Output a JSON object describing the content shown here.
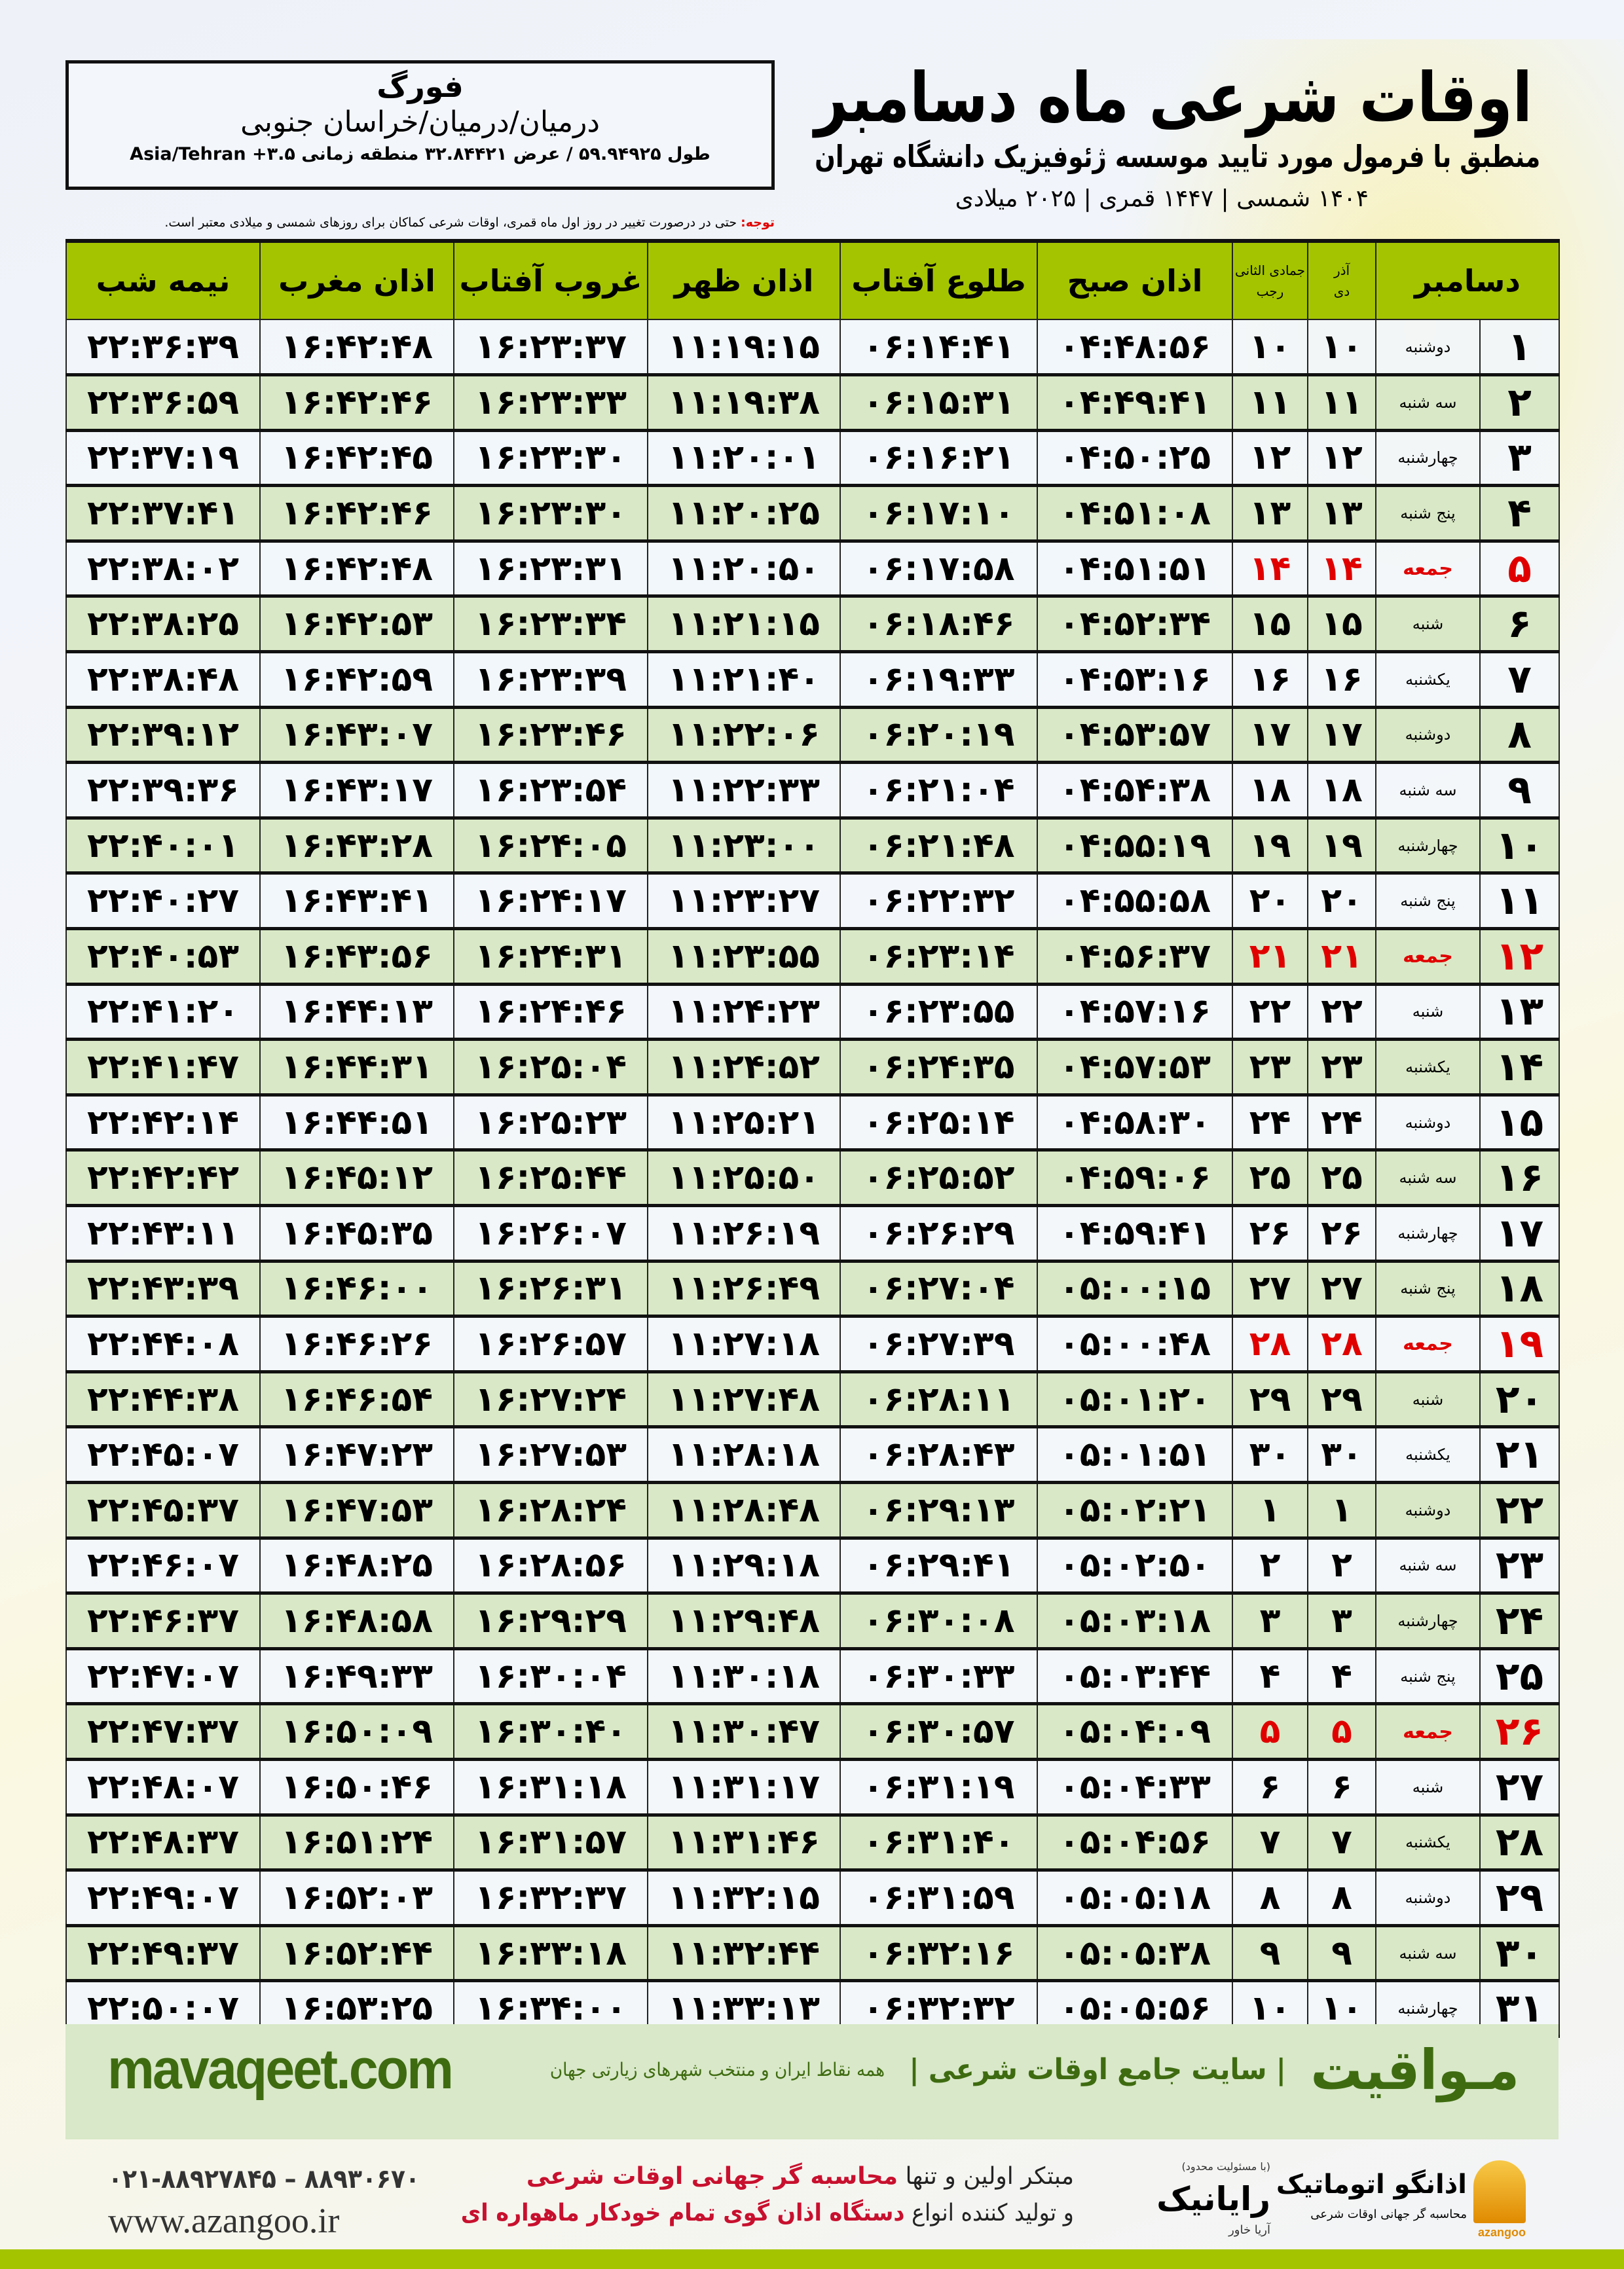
{
  "header": {
    "title": "اوقات شرعی ماه دسامبر",
    "subtitle": "منطبق با فرمول مورد تایید موسسه ژئوفیزیک دانشگاه تهران",
    "date_line": "۱۴۰۴ شمسی | ۱۴۴۷ قمری | ۲۰۲۵ میلادی"
  },
  "location": {
    "city": "فورگ",
    "province": "درمیان/درمیان/خراسان جنوبی",
    "coords": "طول ۵۹.۹۴۹۲۵ / عرض ۳۲.۸۴۴۲۱ منطقه زمانی ۳.۵+ Asia/Tehran"
  },
  "note": {
    "label": "توجه:",
    "text": " حتی در درصورت تغییر در روز اول ماه قمری، اوقات شرعی کماکان برای روزهای شمسی و میلادی معتبر است."
  },
  "columns": {
    "month": "دسامبر",
    "azar": "آذر",
    "dey": "دی",
    "jumada": "جمادی الثانی",
    "rajab": "رجب",
    "fajr": "اذان صبح",
    "sunrise": "طلوع آفتاب",
    "dhuhr": "اذان ظهر",
    "sunset": "غروب آفتاب",
    "maghrib": "اذان مغرب",
    "midnight": "نیمه شب"
  },
  "colors": {
    "header_green": "#a4c400",
    "friday_red": "#e00000",
    "row_alt": "#d9e8c6",
    "brand_green": "#3e6b10"
  },
  "rows": [
    [
      "۱",
      "دوشنبه",
      "۱۰",
      "۱۰",
      "۰۴:۴۸:۵۶",
      "۰۶:۱۴:۴۱",
      "۱۱:۱۹:۱۵",
      "۱۶:۲۳:۳۷",
      "۱۶:۴۲:۴۸",
      "۲۲:۳۶:۳۹"
    ],
    [
      "۲",
      "سه شنبه",
      "۱۱",
      "۱۱",
      "۰۴:۴۹:۴۱",
      "۰۶:۱۵:۳۱",
      "۱۱:۱۹:۳۸",
      "۱۶:۲۳:۳۳",
      "۱۶:۴۲:۴۶",
      "۲۲:۳۶:۵۹"
    ],
    [
      "۳",
      "چهارشنبه",
      "۱۲",
      "۱۲",
      "۰۴:۵۰:۲۵",
      "۰۶:۱۶:۲۱",
      "۱۱:۲۰:۰۱",
      "۱۶:۲۳:۳۰",
      "۱۶:۴۲:۴۵",
      "۲۲:۳۷:۱۹"
    ],
    [
      "۴",
      "پنج شنبه",
      "۱۳",
      "۱۳",
      "۰۴:۵۱:۰۸",
      "۰۶:۱۷:۱۰",
      "۱۱:۲۰:۲۵",
      "۱۶:۲۳:۳۰",
      "۱۶:۴۲:۴۶",
      "۲۲:۳۷:۴۱"
    ],
    [
      "۵",
      "جمعه",
      "۱۴",
      "۱۴",
      "۰۴:۵۱:۵۱",
      "۰۶:۱۷:۵۸",
      "۱۱:۲۰:۵۰",
      "۱۶:۲۳:۳۱",
      "۱۶:۴۲:۴۸",
      "۲۲:۳۸:۰۲"
    ],
    [
      "۶",
      "شنبه",
      "۱۵",
      "۱۵",
      "۰۴:۵۲:۳۴",
      "۰۶:۱۸:۴۶",
      "۱۱:۲۱:۱۵",
      "۱۶:۲۳:۳۴",
      "۱۶:۴۲:۵۳",
      "۲۲:۳۸:۲۵"
    ],
    [
      "۷",
      "یکشنبه",
      "۱۶",
      "۱۶",
      "۰۴:۵۳:۱۶",
      "۰۶:۱۹:۳۳",
      "۱۱:۲۱:۴۰",
      "۱۶:۲۳:۳۹",
      "۱۶:۴۲:۵۹",
      "۲۲:۳۸:۴۸"
    ],
    [
      "۸",
      "دوشنبه",
      "۱۷",
      "۱۷",
      "۰۴:۵۳:۵۷",
      "۰۶:۲۰:۱۹",
      "۱۱:۲۲:۰۶",
      "۱۶:۲۳:۴۶",
      "۱۶:۴۳:۰۷",
      "۲۲:۳۹:۱۲"
    ],
    [
      "۹",
      "سه شنبه",
      "۱۸",
      "۱۸",
      "۰۴:۵۴:۳۸",
      "۰۶:۲۱:۰۴",
      "۱۱:۲۲:۳۳",
      "۱۶:۲۳:۵۴",
      "۱۶:۴۳:۱۷",
      "۲۲:۳۹:۳۶"
    ],
    [
      "۱۰",
      "چهارشنبه",
      "۱۹",
      "۱۹",
      "۰۴:۵۵:۱۹",
      "۰۶:۲۱:۴۸",
      "۱۱:۲۳:۰۰",
      "۱۶:۲۴:۰۵",
      "۱۶:۴۳:۲۸",
      "۲۲:۴۰:۰۱"
    ],
    [
      "۱۱",
      "پنج شنبه",
      "۲۰",
      "۲۰",
      "۰۴:۵۵:۵۸",
      "۰۶:۲۲:۳۲",
      "۱۱:۲۳:۲۷",
      "۱۶:۲۴:۱۷",
      "۱۶:۴۳:۴۱",
      "۲۲:۴۰:۲۷"
    ],
    [
      "۱۲",
      "جمعه",
      "۲۱",
      "۲۱",
      "۰۴:۵۶:۳۷",
      "۰۶:۲۳:۱۴",
      "۱۱:۲۳:۵۵",
      "۱۶:۲۴:۳۱",
      "۱۶:۴۳:۵۶",
      "۲۲:۴۰:۵۳"
    ],
    [
      "۱۳",
      "شنبه",
      "۲۲",
      "۲۲",
      "۰۴:۵۷:۱۶",
      "۰۶:۲۳:۵۵",
      "۱۱:۲۴:۲۳",
      "۱۶:۲۴:۴۶",
      "۱۶:۴۴:۱۳",
      "۲۲:۴۱:۲۰"
    ],
    [
      "۱۴",
      "یکشنبه",
      "۲۳",
      "۲۳",
      "۰۴:۵۷:۵۳",
      "۰۶:۲۴:۳۵",
      "۱۱:۲۴:۵۲",
      "۱۶:۲۵:۰۴",
      "۱۶:۴۴:۳۱",
      "۲۲:۴۱:۴۷"
    ],
    [
      "۱۵",
      "دوشنبه",
      "۲۴",
      "۲۴",
      "۰۴:۵۸:۳۰",
      "۰۶:۲۵:۱۴",
      "۱۱:۲۵:۲۱",
      "۱۶:۲۵:۲۳",
      "۱۶:۴۴:۵۱",
      "۲۲:۴۲:۱۴"
    ],
    [
      "۱۶",
      "سه شنبه",
      "۲۵",
      "۲۵",
      "۰۴:۵۹:۰۶",
      "۰۶:۲۵:۵۲",
      "۱۱:۲۵:۵۰",
      "۱۶:۲۵:۴۴",
      "۱۶:۴۵:۱۲",
      "۲۲:۴۲:۴۲"
    ],
    [
      "۱۷",
      "چهارشنبه",
      "۲۶",
      "۲۶",
      "۰۴:۵۹:۴۱",
      "۰۶:۲۶:۲۹",
      "۱۱:۲۶:۱۹",
      "۱۶:۲۶:۰۷",
      "۱۶:۴۵:۳۵",
      "۲۲:۴۳:۱۱"
    ],
    [
      "۱۸",
      "پنج شنبه",
      "۲۷",
      "۲۷",
      "۰۵:۰۰:۱۵",
      "۰۶:۲۷:۰۴",
      "۱۱:۲۶:۴۹",
      "۱۶:۲۶:۳۱",
      "۱۶:۴۶:۰۰",
      "۲۲:۴۳:۳۹"
    ],
    [
      "۱۹",
      "جمعه",
      "۲۸",
      "۲۸",
      "۰۵:۰۰:۴۸",
      "۰۶:۲۷:۳۹",
      "۱۱:۲۷:۱۸",
      "۱۶:۲۶:۵۷",
      "۱۶:۴۶:۲۶",
      "۲۲:۴۴:۰۸"
    ],
    [
      "۲۰",
      "شنبه",
      "۲۹",
      "۲۹",
      "۰۵:۰۱:۲۰",
      "۰۶:۲۸:۱۱",
      "۱۱:۲۷:۴۸",
      "۱۶:۲۷:۲۴",
      "۱۶:۴۶:۵۴",
      "۲۲:۴۴:۳۸"
    ],
    [
      "۲۱",
      "یکشنبه",
      "۳۰",
      "۳۰",
      "۰۵:۰۱:۵۱",
      "۰۶:۲۸:۴۳",
      "۱۱:۲۸:۱۸",
      "۱۶:۲۷:۵۳",
      "۱۶:۴۷:۲۳",
      "۲۲:۴۵:۰۷"
    ],
    [
      "۲۲",
      "دوشنبه",
      "۱",
      "۱",
      "۰۵:۰۲:۲۱",
      "۰۶:۲۹:۱۳",
      "۱۱:۲۸:۴۸",
      "۱۶:۲۸:۲۴",
      "۱۶:۴۷:۵۳",
      "۲۲:۴۵:۳۷"
    ],
    [
      "۲۳",
      "سه شنبه",
      "۲",
      "۲",
      "۰۵:۰۲:۵۰",
      "۰۶:۲۹:۴۱",
      "۱۱:۲۹:۱۸",
      "۱۶:۲۸:۵۶",
      "۱۶:۴۸:۲۵",
      "۲۲:۴۶:۰۷"
    ],
    [
      "۲۴",
      "چهارشنبه",
      "۳",
      "۳",
      "۰۵:۰۳:۱۸",
      "۰۶:۳۰:۰۸",
      "۱۱:۲۹:۴۸",
      "۱۶:۲۹:۲۹",
      "۱۶:۴۸:۵۸",
      "۲۲:۴۶:۳۷"
    ],
    [
      "۲۵",
      "پنج شنبه",
      "۴",
      "۴",
      "۰۵:۰۳:۴۴",
      "۰۶:۳۰:۳۳",
      "۱۱:۳۰:۱۸",
      "۱۶:۳۰:۰۴",
      "۱۶:۴۹:۳۳",
      "۲۲:۴۷:۰۷"
    ],
    [
      "۲۶",
      "جمعه",
      "۵",
      "۵",
      "۰۵:۰۴:۰۹",
      "۰۶:۳۰:۵۷",
      "۱۱:۳۰:۴۷",
      "۱۶:۳۰:۴۰",
      "۱۶:۵۰:۰۹",
      "۲۲:۴۷:۳۷"
    ],
    [
      "۲۷",
      "شنبه",
      "۶",
      "۶",
      "۰۵:۰۴:۳۳",
      "۰۶:۳۱:۱۹",
      "۱۱:۳۱:۱۷",
      "۱۶:۳۱:۱۸",
      "۱۶:۵۰:۴۶",
      "۲۲:۴۸:۰۷"
    ],
    [
      "۲۸",
      "یکشنبه",
      "۷",
      "۷",
      "۰۵:۰۴:۵۶",
      "۰۶:۳۱:۴۰",
      "۱۱:۳۱:۴۶",
      "۱۶:۳۱:۵۷",
      "۱۶:۵۱:۲۴",
      "۲۲:۴۸:۳۷"
    ],
    [
      "۲۹",
      "دوشنبه",
      "۸",
      "۸",
      "۰۵:۰۵:۱۸",
      "۰۶:۳۱:۵۹",
      "۱۱:۳۲:۱۵",
      "۱۶:۳۲:۳۷",
      "۱۶:۵۲:۰۳",
      "۲۲:۴۹:۰۷"
    ],
    [
      "۳۰",
      "سه شنبه",
      "۹",
      "۹",
      "۰۵:۰۵:۳۸",
      "۰۶:۳۲:۱۶",
      "۱۱:۳۲:۴۴",
      "۱۶:۳۳:۱۸",
      "۱۶:۵۲:۴۴",
      "۲۲:۴۹:۳۷"
    ],
    [
      "۳۱",
      "چهارشنبه",
      "۱۰",
      "۱۰",
      "۰۵:۰۵:۵۶",
      "۰۶:۳۲:۳۲",
      "۱۱:۳۳:۱۳",
      "۱۶:۳۴:۰۰",
      "۱۶:۵۳:۲۵",
      "۲۲:۵۰:۰۷"
    ]
  ],
  "friday_label": "جمعه",
  "footer": {
    "brand": "مـواقیت",
    "tagline": "| سایت جامع اوقات شرعی |",
    "sub": "همه نقاط ایران و منتخب شهرهای زیارتی جهان",
    "site": "mavaqeet.com",
    "ad_line1_a": "مبتکر اولین و تنها ",
    "ad_line1_b": "محاسبه گر جهانی اوقات شرعی",
    "ad_line2_a": "و تولید کننده انواع ",
    "ad_line2_b": "دستگاه اذان گوی تمام خودکار ماهواره ای",
    "phone": "۰۲۱-۸۸۹۲۷۸۴۵ – ۸۸۹۳۰۶۷۰",
    "web": "www.azangoo.ir",
    "logo1_note": "(با مسئولیت محدود)",
    "logo1_name": "رایانیک",
    "logo1_sub": "آریا خاور",
    "logo2_name": "اذانگو اتوماتیک",
    "logo2_sub": "محاسبه گر جهانی اوقات شرعی",
    "logo2_en": "azangoo"
  }
}
